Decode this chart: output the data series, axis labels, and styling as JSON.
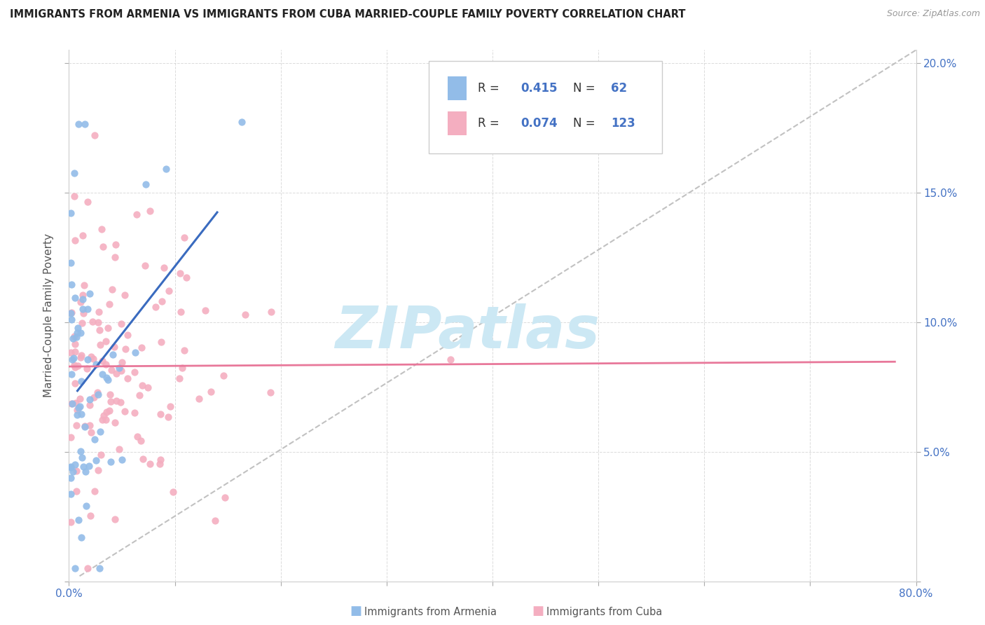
{
  "title": "IMMIGRANTS FROM ARMENIA VS IMMIGRANTS FROM CUBA MARRIED-COUPLE FAMILY POVERTY CORRELATION CHART",
  "source": "Source: ZipAtlas.com",
  "ylabel": "Married-Couple Family Poverty",
  "xlim": [
    0,
    0.8
  ],
  "ylim": [
    0,
    0.205
  ],
  "armenia_color": "#92bce8",
  "armenia_line_color": "#3a6bbf",
  "cuba_color": "#f4aec0",
  "cuba_line_color": "#e8789a",
  "ref_line_color": "#bbbbbb",
  "armenia_R": 0.415,
  "armenia_N": 62,
  "cuba_R": 0.074,
  "cuba_N": 123,
  "legend_text_color": "#333333",
  "legend_val_color": "#4472c4",
  "watermark": "ZIPatlas",
  "watermark_color": "#cce8f4",
  "background_color": "#ffffff",
  "grid_color": "#cccccc",
  "tick_label_color": "#4472c4",
  "title_color": "#222222",
  "source_color": "#999999",
  "ylabel_color": "#555555"
}
